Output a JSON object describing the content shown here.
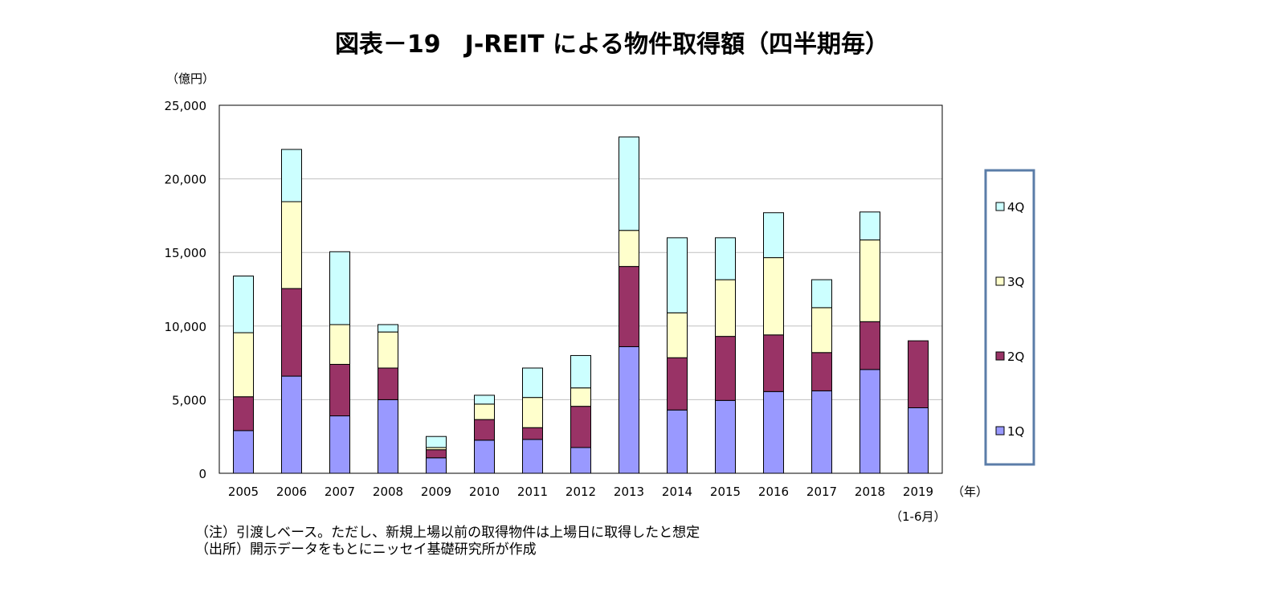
{
  "chart_data": {
    "type": "bar",
    "stacked": true,
    "title": "図表－19　J-REIT による物件取得額（四半期毎）",
    "ylabel": "（億円）",
    "xlabel": "（年）",
    "x_sub_label": "（1-6月）",
    "ylim": [
      0,
      25000
    ],
    "yticks": [
      "0",
      "5,000",
      "10,000",
      "15,000",
      "20,000",
      "25,000"
    ],
    "ytick_values": [
      0,
      5000,
      10000,
      15000,
      20000,
      25000
    ],
    "grid": true,
    "legend_position": "right",
    "categories": [
      "2005",
      "2006",
      "2007",
      "2008",
      "2009",
      "2010",
      "2011",
      "2012",
      "2013",
      "2014",
      "2015",
      "2016",
      "2017",
      "2018",
      "2019"
    ],
    "series": [
      {
        "name": "1Q",
        "color": "#9999FF",
        "values": [
          2900,
          6600,
          3900,
          5000,
          1050,
          2250,
          2300,
          1750,
          8600,
          4300,
          4950,
          5550,
          5600,
          7050,
          4450
        ]
      },
      {
        "name": "2Q",
        "color": "#993366",
        "values": [
          2300,
          5950,
          3500,
          2150,
          550,
          1400,
          800,
          2800,
          5450,
          3550,
          4350,
          3850,
          2600,
          3250,
          4550
        ]
      },
      {
        "name": "3Q",
        "color": "#FFFFCC",
        "values": [
          4350,
          5900,
          2700,
          2450,
          150,
          1050,
          2050,
          1250,
          2450,
          3050,
          3850,
          5250,
          3050,
          5550,
          0
        ]
      },
      {
        "name": "4Q",
        "color": "#CCFFFF",
        "values": [
          3850,
          3550,
          4950,
          500,
          750,
          600,
          2000,
          2200,
          6350,
          5100,
          2850,
          3050,
          1900,
          1900,
          0
        ]
      }
    ]
  },
  "notes": [
    "（注）引渡しベース。ただし、新規上場以前の取得物件は上場日に取得したと想定",
    "（出所）開示データをもとにニッセイ基礎研究所が作成"
  ]
}
